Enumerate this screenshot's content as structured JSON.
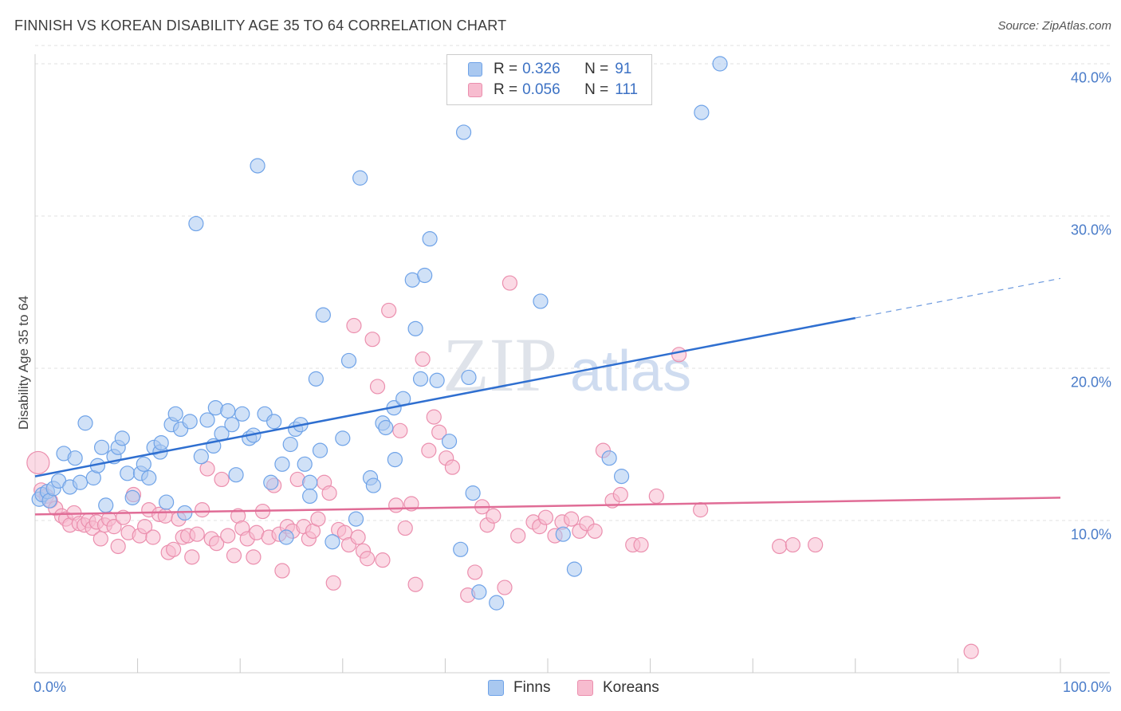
{
  "header": {
    "title": "FINNISH VS KOREAN DISABILITY AGE 35 TO 64 CORRELATION CHART",
    "source": "Source: ZipAtlas.com"
  },
  "watermark": {
    "zip": "ZIP",
    "atlas": "atlas"
  },
  "legend": {
    "rows": [
      {
        "r_label": "R =",
        "r_value": "0.326",
        "n_label": "N =",
        "n_value": "91",
        "color": "#6fa3e8"
      },
      {
        "r_label": "R =",
        "r_value": "0.056",
        "n_label": "N =",
        "n_value": "111",
        "color": "#f2a0bb"
      }
    ]
  },
  "bottom_legend": {
    "finns": "Finns",
    "koreans": "Koreans"
  },
  "colors": {
    "finns_fill": "#a9c8f0",
    "finns_stroke": "#6fa3e8",
    "finns_line": "#2f6fd0",
    "koreans_fill": "#f7bccf",
    "koreans_stroke": "#eb8fae",
    "koreans_line": "#e06c96",
    "tick_label": "#4a7cc9",
    "grid": "#e0e0e0"
  },
  "chart_data": {
    "type": "scatter",
    "title": "FINNISH VS KOREAN DISABILITY AGE 35 TO 64 CORRELATION CHART",
    "xlabel": "",
    "ylabel": "Disability Age 35 to 64",
    "xlim": [
      0,
      100
    ],
    "ylim": [
      0,
      42
    ],
    "x_tick_labels": [
      "0.0%",
      "100.0%"
    ],
    "y_ticks": [
      10,
      20,
      30,
      40
    ],
    "y_tick_labels": [
      "10.0%",
      "20.0%",
      "30.0%",
      "40.0%"
    ],
    "grid": true,
    "legend_position": "top-center",
    "series": [
      {
        "name": "Finns",
        "R": 0.326,
        "N": 91,
        "trend": {
          "x0": 0,
          "y0": 12.9,
          "x1": 80,
          "y1": 23.3,
          "dashed_to_x": 100,
          "dashed_to_y": 25.9
        },
        "points": [
          [
            0.4,
            11.4
          ],
          [
            0.7,
            11.7
          ],
          [
            1.2,
            11.9
          ],
          [
            1.4,
            11.3
          ],
          [
            1.8,
            12.1
          ],
          [
            2.3,
            12.6
          ],
          [
            2.8,
            14.4
          ],
          [
            3.4,
            12.2
          ],
          [
            3.9,
            14.1
          ],
          [
            4.4,
            12.5
          ],
          [
            4.9,
            16.4
          ],
          [
            5.7,
            12.8
          ],
          [
            6.1,
            13.6
          ],
          [
            6.5,
            14.8
          ],
          [
            6.9,
            11.0
          ],
          [
            7.7,
            14.2
          ],
          [
            8.1,
            14.8
          ],
          [
            8.5,
            15.4
          ],
          [
            9.0,
            13.1
          ],
          [
            9.5,
            11.5
          ],
          [
            10.3,
            13.1
          ],
          [
            10.6,
            13.7
          ],
          [
            11.1,
            12.8
          ],
          [
            11.6,
            14.8
          ],
          [
            12.2,
            14.5
          ],
          [
            12.3,
            15.1
          ],
          [
            12.8,
            11.2
          ],
          [
            13.3,
            16.3
          ],
          [
            13.7,
            17.0
          ],
          [
            14.2,
            16.0
          ],
          [
            14.6,
            10.5
          ],
          [
            15.1,
            16.5
          ],
          [
            15.7,
            29.5
          ],
          [
            16.2,
            14.2
          ],
          [
            16.8,
            16.6
          ],
          [
            17.4,
            14.9
          ],
          [
            17.6,
            17.4
          ],
          [
            18.2,
            15.7
          ],
          [
            18.8,
            17.2
          ],
          [
            19.2,
            16.3
          ],
          [
            19.6,
            13.0
          ],
          [
            20.2,
            17.0
          ],
          [
            20.9,
            15.4
          ],
          [
            21.3,
            15.6
          ],
          [
            21.7,
            33.3
          ],
          [
            22.4,
            17.0
          ],
          [
            23.0,
            12.5
          ],
          [
            23.3,
            16.5
          ],
          [
            24.1,
            13.7
          ],
          [
            24.5,
            8.9
          ],
          [
            24.9,
            15.0
          ],
          [
            25.4,
            16.0
          ],
          [
            25.9,
            16.3
          ],
          [
            26.3,
            13.7
          ],
          [
            26.8,
            12.5
          ],
          [
            26.8,
            11.6
          ],
          [
            27.4,
            19.3
          ],
          [
            27.8,
            14.6
          ],
          [
            28.1,
            23.5
          ],
          [
            29.0,
            8.6
          ],
          [
            30.0,
            15.4
          ],
          [
            30.6,
            20.5
          ],
          [
            31.3,
            10.1
          ],
          [
            31.7,
            32.5
          ],
          [
            32.7,
            12.8
          ],
          [
            33.0,
            12.3
          ],
          [
            33.9,
            16.4
          ],
          [
            34.2,
            16.1
          ],
          [
            35.0,
            17.4
          ],
          [
            35.1,
            14.0
          ],
          [
            35.9,
            18.0
          ],
          [
            36.8,
            25.8
          ],
          [
            37.1,
            22.6
          ],
          [
            37.6,
            19.3
          ],
          [
            38.0,
            26.1
          ],
          [
            38.5,
            28.5
          ],
          [
            39.2,
            19.2
          ],
          [
            40.4,
            15.2
          ],
          [
            41.5,
            8.1
          ],
          [
            41.8,
            35.5
          ],
          [
            42.3,
            19.4
          ],
          [
            42.7,
            11.8
          ],
          [
            43.3,
            5.3
          ],
          [
            45.0,
            4.6
          ],
          [
            49.3,
            24.4
          ],
          [
            51.5,
            9.1
          ],
          [
            52.6,
            6.8
          ],
          [
            56.0,
            14.1
          ],
          [
            57.2,
            12.9
          ],
          [
            65.0,
            36.8
          ],
          [
            66.8,
            40.0
          ]
        ]
      },
      {
        "name": "Koreans",
        "R": 0.056,
        "N": 111,
        "trend": {
          "x0": 0,
          "y0": 10.4,
          "x1": 100,
          "y1": 11.5
        },
        "points": [
          [
            0.3,
            13.8
          ],
          [
            0.6,
            12.0
          ],
          [
            1.1,
            11.6
          ],
          [
            1.5,
            11.3
          ],
          [
            2.0,
            10.8
          ],
          [
            2.6,
            10.3
          ],
          [
            3.0,
            10.1
          ],
          [
            3.4,
            9.7
          ],
          [
            3.8,
            10.5
          ],
          [
            4.3,
            9.8
          ],
          [
            4.8,
            9.7
          ],
          [
            5.2,
            10.0
          ],
          [
            5.6,
            9.5
          ],
          [
            6.0,
            9.9
          ],
          [
            6.4,
            8.8
          ],
          [
            6.8,
            9.7
          ],
          [
            7.2,
            10.1
          ],
          [
            7.7,
            9.6
          ],
          [
            8.1,
            8.3
          ],
          [
            8.6,
            10.2
          ],
          [
            9.1,
            9.2
          ],
          [
            9.6,
            11.7
          ],
          [
            10.2,
            9.0
          ],
          [
            10.7,
            9.6
          ],
          [
            11.1,
            10.7
          ],
          [
            11.5,
            8.9
          ],
          [
            12.1,
            10.4
          ],
          [
            12.7,
            10.3
          ],
          [
            13.0,
            7.9
          ],
          [
            13.5,
            8.1
          ],
          [
            14.0,
            10.1
          ],
          [
            14.4,
            8.9
          ],
          [
            14.9,
            9.0
          ],
          [
            15.3,
            7.6
          ],
          [
            15.8,
            9.1
          ],
          [
            16.3,
            10.7
          ],
          [
            16.8,
            13.4
          ],
          [
            17.2,
            8.8
          ],
          [
            17.7,
            8.5
          ],
          [
            18.2,
            12.7
          ],
          [
            18.8,
            9.0
          ],
          [
            19.4,
            7.7
          ],
          [
            19.8,
            10.3
          ],
          [
            20.2,
            9.5
          ],
          [
            20.7,
            8.8
          ],
          [
            21.3,
            7.6
          ],
          [
            21.6,
            9.2
          ],
          [
            22.2,
            10.6
          ],
          [
            22.8,
            8.9
          ],
          [
            23.3,
            12.3
          ],
          [
            23.8,
            9.1
          ],
          [
            24.1,
            6.7
          ],
          [
            24.6,
            9.6
          ],
          [
            25.1,
            9.3
          ],
          [
            25.6,
            12.7
          ],
          [
            26.2,
            9.6
          ],
          [
            26.7,
            8.8
          ],
          [
            27.1,
            9.3
          ],
          [
            27.6,
            10.1
          ],
          [
            28.2,
            12.5
          ],
          [
            28.7,
            11.8
          ],
          [
            29.1,
            5.9
          ],
          [
            29.6,
            9.4
          ],
          [
            30.2,
            9.2
          ],
          [
            30.6,
            8.4
          ],
          [
            31.1,
            22.8
          ],
          [
            31.5,
            8.9
          ],
          [
            32.0,
            8.0
          ],
          [
            32.4,
            7.5
          ],
          [
            32.9,
            21.9
          ],
          [
            33.4,
            18.8
          ],
          [
            33.9,
            7.4
          ],
          [
            34.5,
            23.8
          ],
          [
            35.2,
            11.0
          ],
          [
            35.6,
            15.9
          ],
          [
            36.1,
            9.5
          ],
          [
            36.7,
            11.1
          ],
          [
            37.1,
            5.8
          ],
          [
            37.8,
            20.6
          ],
          [
            38.4,
            14.6
          ],
          [
            38.9,
            16.8
          ],
          [
            39.4,
            15.8
          ],
          [
            40.1,
            14.1
          ],
          [
            40.7,
            13.5
          ],
          [
            42.2,
            5.1
          ],
          [
            42.9,
            6.6
          ],
          [
            43.6,
            10.9
          ],
          [
            44.1,
            9.7
          ],
          [
            44.7,
            10.3
          ],
          [
            45.8,
            5.6
          ],
          [
            46.3,
            25.6
          ],
          [
            47.1,
            9.0
          ],
          [
            48.6,
            9.9
          ],
          [
            49.2,
            9.6
          ],
          [
            49.8,
            10.2
          ],
          [
            50.7,
            9.0
          ],
          [
            51.4,
            9.9
          ],
          [
            52.3,
            10.1
          ],
          [
            53.1,
            9.3
          ],
          [
            53.8,
            9.8
          ],
          [
            54.6,
            9.3
          ],
          [
            55.4,
            14.6
          ],
          [
            56.3,
            11.3
          ],
          [
            57.1,
            11.7
          ],
          [
            58.3,
            8.4
          ],
          [
            59.1,
            8.4
          ],
          [
            60.6,
            11.6
          ],
          [
            62.8,
            20.9
          ],
          [
            64.9,
            10.7
          ],
          [
            72.6,
            8.3
          ],
          [
            73.9,
            8.4
          ],
          [
            76.1,
            8.4
          ],
          [
            91.3,
            1.4
          ]
        ]
      }
    ]
  }
}
